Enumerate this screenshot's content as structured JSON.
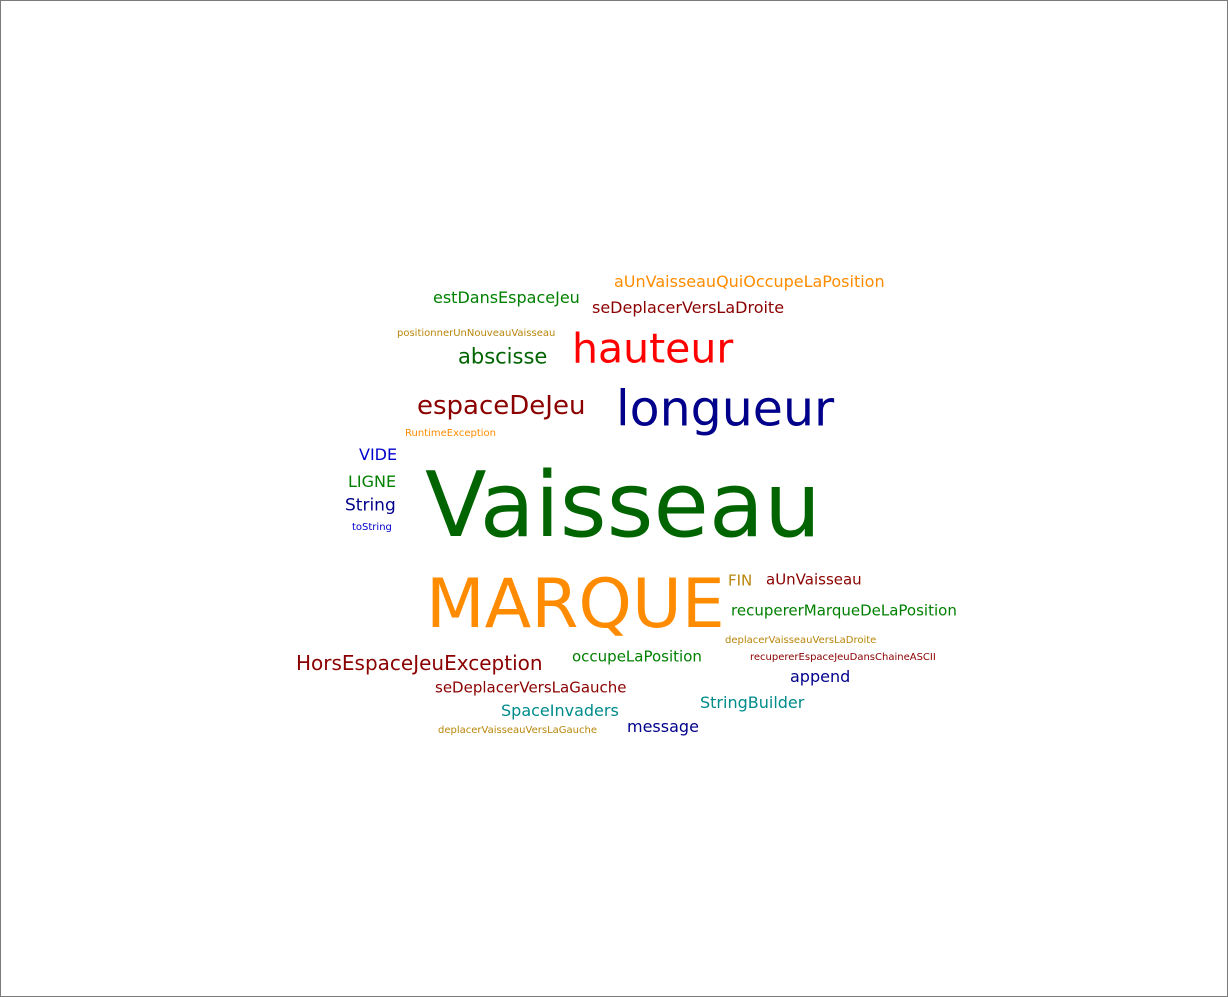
{
  "words": [
    {
      "text": "aUnVaisseauQuiOccupeLaPosition",
      "color": "#ff8c00"
    },
    {
      "text": "estDansEspaceJeu",
      "color": "#008000"
    },
    {
      "text": "seDeplacerVersLaDroite",
      "color": "#8b0000"
    },
    {
      "text": "positionnerUnNouveauVaisseau",
      "color": "#b8860b"
    },
    {
      "text": "abscisse",
      "color": "#006400"
    },
    {
      "text": "hauteur",
      "color": "#ff0000"
    },
    {
      "text": "espaceDeJeu",
      "color": "#8b0000"
    },
    {
      "text": "longueur",
      "color": "#00008b"
    },
    {
      "text": "RuntimeException",
      "color": "#ff8c00"
    },
    {
      "text": "VIDE",
      "color": "#0000cd"
    },
    {
      "text": "LIGNE",
      "color": "#008000"
    },
    {
      "text": "String",
      "color": "#00008b"
    },
    {
      "text": "toString",
      "color": "#0000cd"
    },
    {
      "text": "Vaisseau",
      "color": "#006400"
    },
    {
      "text": "MARQUE",
      "color": "#ff8c00"
    },
    {
      "text": "FIN",
      "color": "#b8860b"
    },
    {
      "text": "aUnVaisseau",
      "color": "#8b0000"
    },
    {
      "text": "recupererMarqueDeLaPosition",
      "color": "#008000"
    },
    {
      "text": "deplacerVaisseauVersLaDroite",
      "color": "#b8860b"
    },
    {
      "text": "HorsEspaceJeuException",
      "color": "#8b0000"
    },
    {
      "text": "occupeLaPosition",
      "color": "#008000"
    },
    {
      "text": "recupererEspaceJeuDansChaineASCII",
      "color": "#8b0000"
    },
    {
      "text": "append",
      "color": "#00008b"
    },
    {
      "text": "seDeplacerVersLaGauche",
      "color": "#8b0000"
    },
    {
      "text": "StringBuilder",
      "color": "#008b8b"
    },
    {
      "text": "SpaceInvaders",
      "color": "#008b8b"
    },
    {
      "text": "message",
      "color": "#00008b"
    },
    {
      "text": "deplacerVaisseauVersLaGauche",
      "color": "#b8860b"
    }
  ]
}
